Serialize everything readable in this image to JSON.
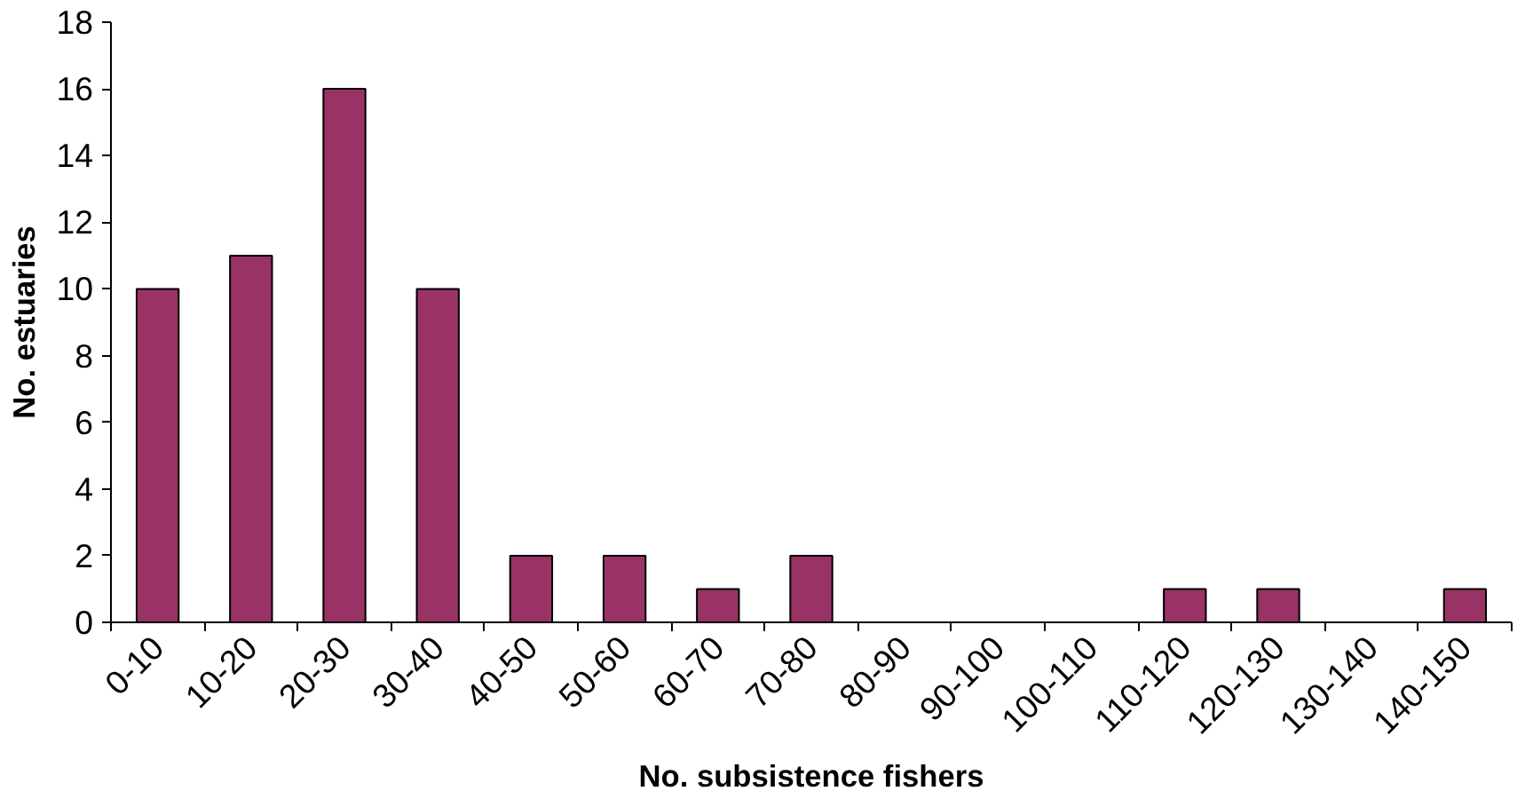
{
  "chart_data": {
    "type": "bar",
    "xlabel": "No. subsistence fishers",
    "ylabel": "No. estuaries",
    "categories": [
      "0-10",
      "10-20",
      "20-30",
      "30-40",
      "40-50",
      "50-60",
      "60-70",
      "70-80",
      "80-90",
      "90-100",
      "100-110",
      "110-120",
      "120-130",
      "130-140",
      "140-150"
    ],
    "values": [
      10,
      11,
      16,
      10,
      2,
      2,
      1,
      2,
      0,
      0,
      0,
      1,
      1,
      0,
      1
    ],
    "color": "#993366",
    "ylim": [
      0,
      18
    ],
    "yticks": [
      0,
      2,
      4,
      6,
      8,
      10,
      12,
      14,
      16,
      18
    ],
    "grid": false
  }
}
